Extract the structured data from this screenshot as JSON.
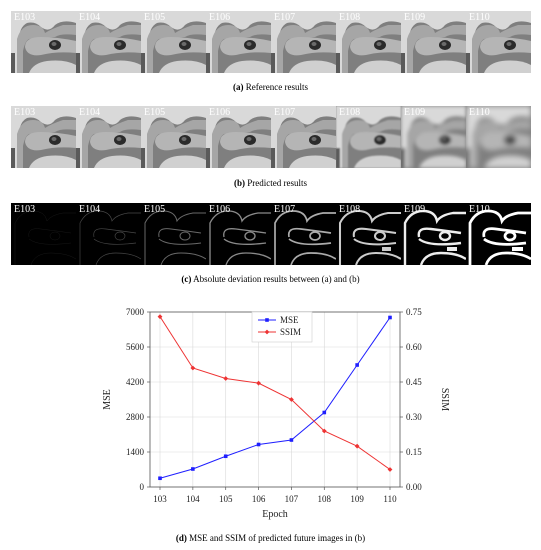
{
  "panel_a": {
    "labels": [
      "E103",
      "E104",
      "E105",
      "E106",
      "E107",
      "E108",
      "E109",
      "E110"
    ],
    "caption_tag": "(a)",
    "caption_text": " Reference results"
  },
  "panel_b": {
    "labels": [
      "E103",
      "E104",
      "E105",
      "E106",
      "E107",
      "E108",
      "E109",
      "E110"
    ],
    "caption_tag": "(b)",
    "caption_text": " Predicted results"
  },
  "panel_c": {
    "labels": [
      "E103",
      "E104",
      "E105",
      "E106",
      "E107",
      "E108",
      "E109",
      "E110"
    ],
    "caption_tag": "(c)",
    "caption_text": " Absolute deviation results between (a) and (b)"
  },
  "panel_d": {
    "caption_tag": "(d)",
    "caption_text": " MSE and SSIM of predicted future images in (b)"
  },
  "colors": {
    "mse": "#1f1fff",
    "ssim": "#ee3333",
    "grid": "#d9d9d9"
  },
  "chart_data": {
    "type": "line",
    "x": [
      103,
      104,
      105,
      106,
      107,
      108,
      109,
      110
    ],
    "xlabel": "Epoch",
    "ylabel_left": "MSE",
    "ylabel_right": "SSIM",
    "ylim_left": [
      0,
      7000
    ],
    "yticks_left": [
      0,
      1400,
      2800,
      4200,
      5600,
      7000
    ],
    "ylim_right": [
      0,
      0.75
    ],
    "yticks_right": [
      "0.00",
      "0.15",
      "0.30",
      "0.45",
      "0.60",
      "0.75"
    ],
    "grid": true,
    "legend_position": "top-center",
    "series": [
      {
        "name": "MSE",
        "axis": "left",
        "marker": "square",
        "values": [
          350,
          720,
          1230,
          1700,
          1880,
          2980,
          4880,
          6780
        ]
      },
      {
        "name": "SSIM",
        "axis": "right",
        "marker": "diamond",
        "values": [
          0.73,
          0.51,
          0.465,
          0.445,
          0.375,
          0.24,
          0.175,
          0.075
        ]
      }
    ]
  }
}
